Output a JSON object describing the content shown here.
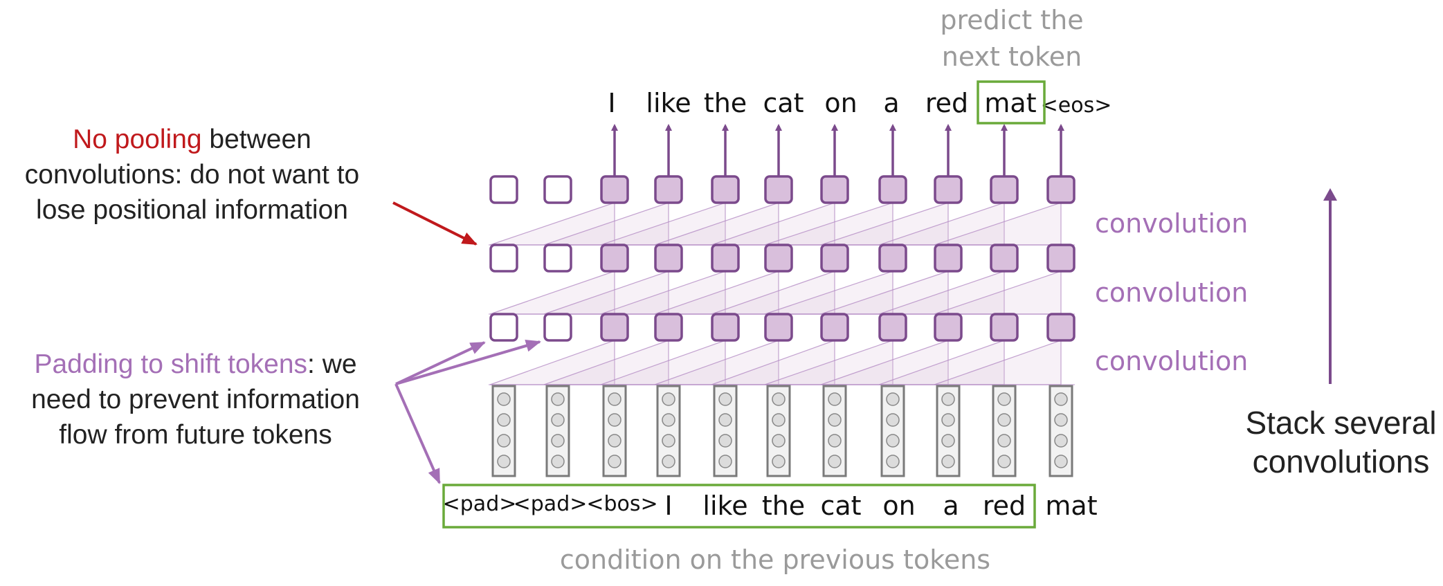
{
  "colors": {
    "purple": "#7b4a8c",
    "purple_fill": "#d9bfdc",
    "purple_light": "#b48cc4",
    "purple_text": "#a46fb6",
    "red": "#c0191c",
    "green": "#6aaa3a",
    "gray_text": "#9a9a9a",
    "embedding_border": "#7a7a7a"
  },
  "header": {
    "predict_line1": "predict the",
    "predict_line2": "next token"
  },
  "output_tokens": [
    "I",
    "like",
    "the",
    "cat",
    "on",
    "a",
    "red",
    "mat",
    "<eos>"
  ],
  "input_tokens": [
    "<pad>",
    "<pad>",
    "<bos>",
    "I",
    "like",
    "the",
    "cat",
    "on",
    "a",
    "red",
    "mat"
  ],
  "layer_labels": [
    "convolution",
    "convolution",
    "convolution"
  ],
  "annotations": {
    "pooling_highlight": "No pooling",
    "pooling_rest_1": " between",
    "pooling_line2": "convolutions: do not want to",
    "pooling_line3": "lose positional information",
    "padding_highlight": "Padding to shift tokens",
    "padding_rest_1": ": we",
    "padding_line2": "need to prevent information",
    "padding_line3": "flow from future tokens",
    "stack_line1": "Stack several",
    "stack_line2": "convolutions",
    "condition": "condition on the previous tokens"
  }
}
